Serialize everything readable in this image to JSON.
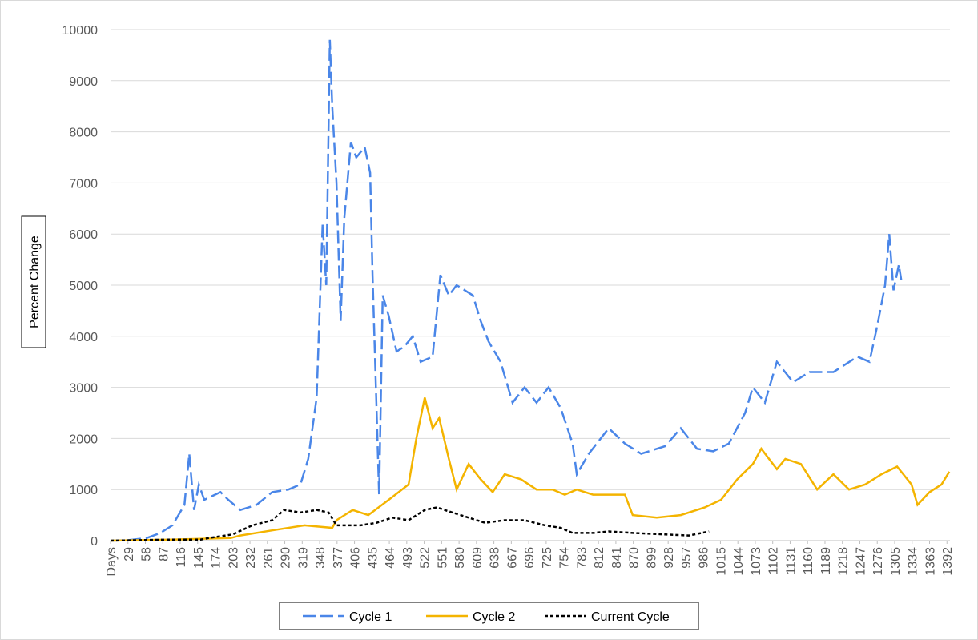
{
  "chart_data": {
    "type": "line",
    "y_label": "Percent Change",
    "xlim": [
      0,
      1397
    ],
    "ylim": [
      0,
      10000
    ],
    "yticks": [
      0,
      1000,
      2000,
      3000,
      4000,
      5000,
      6000,
      7000,
      8000,
      9000,
      10000
    ],
    "xticks": [
      {
        "value": 0,
        "label": "Days"
      },
      29,
      58,
      87,
      116,
      145,
      174,
      203,
      232,
      261,
      290,
      319,
      348,
      377,
      406,
      435,
      464,
      493,
      522,
      551,
      580,
      609,
      638,
      667,
      696,
      725,
      754,
      783,
      812,
      841,
      870,
      899,
      928,
      957,
      986,
      1015,
      1044,
      1073,
      1102,
      1131,
      1160,
      1189,
      1218,
      1247,
      1276,
      1305,
      1334,
      1363,
      1392
    ],
    "grid": true,
    "legend": "bottom",
    "series": [
      {
        "name": "Cycle 1",
        "color": "#4a86e8",
        "line_style": "dashed",
        "x": [
          0,
          30,
          60,
          83,
          103,
          123,
          131,
          139,
          147,
          156,
          183,
          196,
          216,
          243,
          269,
          296,
          316,
          329,
          343,
          353,
          359,
          365,
          369,
          376,
          383,
          389,
          400,
          409,
          423,
          432,
          436,
          447,
          453,
          463,
          476,
          489,
          503,
          516,
          536,
          549,
          563,
          576,
          603,
          616,
          629,
          649,
          669,
          689,
          709,
          729,
          749,
          769,
          776,
          796,
          829,
          856,
          883,
          923,
          949,
          976,
          1003,
          1029,
          1056,
          1069,
          1089,
          1109,
          1136,
          1163,
          1203,
          1243,
          1263,
          1276,
          1289,
          1296,
          1303,
          1312,
          1316
        ],
        "values": [
          0,
          10,
          50,
          150,
          300,
          700,
          1700,
          600,
          1100,
          800,
          950,
          800,
          600,
          700,
          950,
          1000,
          1100,
          1600,
          2800,
          6200,
          5000,
          9800,
          8500,
          7000,
          4300,
          6300,
          7800,
          7500,
          7700,
          7200,
          5200,
          900,
          4800,
          4400,
          3700,
          3800,
          4000,
          3500,
          3600,
          5200,
          4800,
          5000,
          4800,
          4300,
          3900,
          3500,
          2700,
          3000,
          2700,
          3000,
          2600,
          1900,
          1300,
          1700,
          2200,
          1900,
          1700,
          1850,
          2200,
          1800,
          1750,
          1900,
          2500,
          3000,
          2700,
          3500,
          3100,
          3300,
          3300,
          3600,
          3500,
          4200,
          5000,
          6000,
          4900,
          5400,
          5100
        ]
      },
      {
        "name": "Cycle 2",
        "color": "#f4b400",
        "line_style": "solid",
        "x": [
          0,
          100,
          200,
          216,
          269,
          323,
          369,
          376,
          403,
          429,
          463,
          496,
          509,
          523,
          536,
          547,
          563,
          576,
          596,
          616,
          636,
          656,
          683,
          709,
          736,
          756,
          776,
          803,
          856,
          869,
          909,
          949,
          989,
          1016,
          1043,
          1069,
          1083,
          1109,
          1123,
          1149,
          1176,
          1203,
          1229,
          1256,
          1283,
          1309,
          1333,
          1343,
          1363,
          1383,
          1396
        ],
        "values": [
          0,
          20,
          50,
          100,
          200,
          300,
          250,
          400,
          600,
          500,
          800,
          1100,
          2000,
          2800,
          2200,
          2400,
          1600,
          1000,
          1500,
          1200,
          950,
          1300,
          1200,
          1000,
          1000,
          900,
          1000,
          900,
          900,
          500,
          450,
          500,
          650,
          800,
          1200,
          1500,
          1800,
          1400,
          1600,
          1500,
          1000,
          1300,
          1000,
          1100,
          1300,
          1450,
          1100,
          700,
          950,
          1100,
          1350
        ]
      },
      {
        "name": "Current Cycle",
        "color": "#000000",
        "line_style": "dotted",
        "x": [
          0,
          100,
          150,
          163,
          203,
          236,
          269,
          289,
          316,
          343,
          363,
          376,
          416,
          443,
          469,
          496,
          523,
          543,
          569,
          596,
          623,
          656,
          689,
          723,
          749,
          769,
          803,
          829,
          869,
          923,
          963,
          996
        ],
        "values": [
          0,
          20,
          20,
          50,
          120,
          300,
          400,
          600,
          550,
          600,
          550,
          300,
          300,
          350,
          450,
          400,
          600,
          650,
          550,
          450,
          350,
          400,
          400,
          300,
          250,
          150,
          150,
          180,
          150,
          120,
          100,
          180
        ]
      }
    ]
  }
}
